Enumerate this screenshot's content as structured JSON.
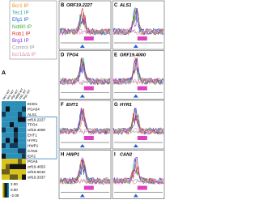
{
  "legend": [
    "Bcr1 IP",
    "Tec1 IP",
    "Efg1 IP",
    "Ndt80 IP",
    "Rob1 IP",
    "Brg1 IP",
    "Control IP",
    "bcr1Δ/Δ IP"
  ],
  "panel_a": {
    "label": "A",
    "columns": [
      "bcr1 WT",
      "tec1 WT",
      "efg1 WT",
      "ndt80 WT",
      "rob1 WT",
      "brg1 WT"
    ],
    "genes": [
      "EHD1",
      "PGA54",
      "ALS1",
      "orf19.2227",
      "TPO4",
      "orf19.4000",
      "EHT1",
      "HYR1",
      "HWP1",
      "CAN2",
      "IDF2",
      "PGA6",
      "orf19.4653",
      "orf19.6010",
      "orf19.3337"
    ],
    "colorbar": [
      "2.00",
      "0.00",
      "-2.00"
    ]
  },
  "panels": [
    {
      "label": "B",
      "gene": "ORF19.2227"
    },
    {
      "label": "C",
      "gene": "ALS1"
    },
    {
      "label": "D",
      "gene": "TPO4"
    },
    {
      "label": "E",
      "gene": "ORF19.4000"
    },
    {
      "label": "F",
      "gene": "EHT1"
    },
    {
      "label": "G",
      "gene": "HYR1"
    },
    {
      "label": "H",
      "gene": "HWP1"
    },
    {
      "label": "I",
      "gene": "CAN2"
    }
  ]
}
